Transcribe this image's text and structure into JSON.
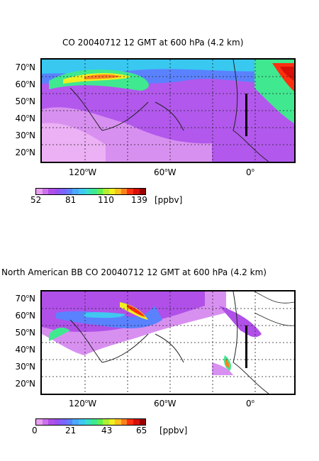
{
  "panels": [
    {
      "title": "CO 20040712 12 GMT at 600 hPa (4.2 km)",
      "lat_labels": [
        "70",
        "60",
        "50",
        "40",
        "30",
        "20"
      ],
      "lon_labels": [
        "120",
        "60",
        "0"
      ],
      "colorbar": {
        "ticks": [
          "52",
          "81",
          "110",
          "139"
        ],
        "unit": "[ppbv]"
      }
    },
    {
      "title": "North American BB CO 20040712 12 GMT at 600 hPa (4.2 km)",
      "lat_labels": [
        "70",
        "60",
        "50",
        "40",
        "30",
        "20"
      ],
      "lon_labels": [
        "120",
        "60",
        "0"
      ],
      "colorbar": {
        "ticks": [
          "0",
          "21",
          "43",
          "65"
        ],
        "unit": "[ppbv]"
      }
    }
  ],
  "lat_suffix": "N",
  "lon_suffix": "W",
  "degree_mark": "o",
  "colorbar_colors": [
    "#e8a0f0",
    "#cc70ec",
    "#b050e8",
    "#9a50f0",
    "#7c64ff",
    "#5a82ff",
    "#4aa8ff",
    "#40c8f0",
    "#38e0c8",
    "#40e890",
    "#60f050",
    "#b0f030",
    "#f0f020",
    "#ffc020",
    "#ff8020",
    "#ff3010",
    "#d81008",
    "#9a0000"
  ]
}
